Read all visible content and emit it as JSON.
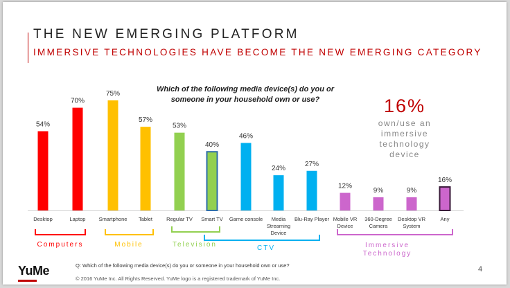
{
  "slide": {
    "title": "THE NEW EMERGING PLATFORM",
    "subtitle": "IMMERSIVE TECHNOLOGIES HAVE BECOME THE NEW EMERGING CATEGORY",
    "question_line1": "Which of the following media device(s) do you or",
    "question_line2": "someone in your household own or use?",
    "callout_value": "16%",
    "callout_line1": "own/use an",
    "callout_line2": "immersive",
    "callout_line3": "technology",
    "callout_line4": "device",
    "footer_question": "Q: Which of the following media device(s) do you or someone in your household own or use?",
    "footer_copyright": "© 2016 YuMe Inc. All Rights Reserved. YuMe logo is a registered trademark of YuMe Inc.",
    "logo_text": "YuMe",
    "page_number": "4"
  },
  "colors": {
    "accent": "#c00000",
    "computers": "#ff0000",
    "mobile": "#ffc000",
    "television": "#92d050",
    "ctv": "#00b0f0",
    "immersive": "#cc66cc"
  },
  "chart_data": {
    "type": "bar",
    "title": "Which of the following media device(s) do you or someone in your household own or use?",
    "ylim": [
      0,
      75
    ],
    "categories": [
      "Desktop",
      "Laptop",
      "Smartphone",
      "Tablet",
      "Regular TV",
      "Smart TV",
      "Game console",
      "Media Streaming Device",
      "Blu-Ray Player",
      "Mobile VR Device",
      "360-Degree Camera",
      "Desktop VR System",
      "Any"
    ],
    "category_lines": [
      [
        "Desktop"
      ],
      [
        "Laptop"
      ],
      [
        "Smartphone"
      ],
      [
        "Tablet"
      ],
      [
        "Regular TV"
      ],
      [
        "Smart TV"
      ],
      [
        "Game console"
      ],
      [
        "Media",
        "Streaming",
        "Device"
      ],
      [
        "Blu-Ray Player"
      ],
      [
        "Mobile VR",
        "Device"
      ],
      [
        "360-Degree",
        "Camera"
      ],
      [
        "Desktop VR",
        "System"
      ],
      [
        "Any"
      ]
    ],
    "values": [
      54,
      70,
      75,
      57,
      53,
      40,
      46,
      24,
      27,
      12,
      9,
      9,
      16
    ],
    "value_labels": [
      "54%",
      "70%",
      "75%",
      "57%",
      "53%",
      "40%",
      "46%",
      "24%",
      "27%",
      "12%",
      "9%",
      "9%",
      "16%"
    ],
    "bar_group": [
      "computers",
      "computers",
      "mobile",
      "mobile",
      "television",
      "television",
      "ctv",
      "ctv",
      "ctv",
      "immersive",
      "immersive",
      "immersive",
      "immersive"
    ],
    "highlighted": [
      "Smart TV",
      "Any"
    ],
    "groups": [
      {
        "key": "computers",
        "label": "Computers",
        "first": 0,
        "last": 1
      },
      {
        "key": "mobile",
        "label": "Mobile",
        "first": 2,
        "last": 3
      },
      {
        "key": "television",
        "label": "Television",
        "first": 4,
        "last": 5
      },
      {
        "key": "ctv",
        "label": "CTV",
        "first": 5,
        "last": 8
      },
      {
        "key": "immersive",
        "label_line1": "Immersive",
        "label_line2": "Technology",
        "first": 9,
        "last": 12
      }
    ]
  }
}
